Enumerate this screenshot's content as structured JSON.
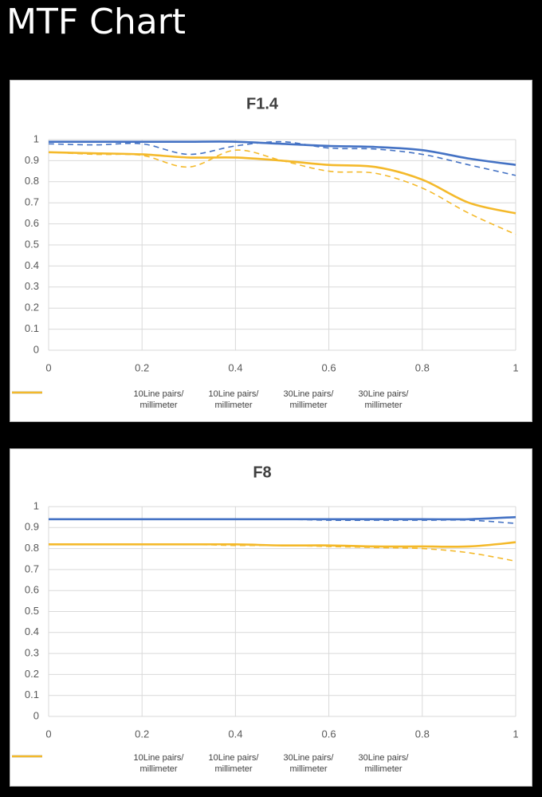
{
  "title": "MTF Chart",
  "chart_data": [
    {
      "type": "line",
      "title": "F1.4",
      "x": [
        0,
        0.1,
        0.2,
        0.3,
        0.4,
        0.5,
        0.6,
        0.7,
        0.8,
        0.9,
        1
      ],
      "xlim": [
        0,
        1
      ],
      "xticks": [
        0,
        0.2,
        0.4,
        0.6,
        0.8,
        1
      ],
      "ylim": [
        0,
        1
      ],
      "yticks": [
        0,
        0.1,
        0.2,
        0.3,
        0.4,
        0.5,
        0.6,
        0.7,
        0.8,
        0.9,
        1
      ],
      "grid": true,
      "legend": "bottom",
      "series": [
        {
          "name": "10Line pairs/ millimeter",
          "color": "#4472c4",
          "dashed": false,
          "values": [
            0.99,
            0.99,
            0.99,
            0.99,
            0.99,
            0.98,
            0.97,
            0.965,
            0.95,
            0.91,
            0.88
          ]
        },
        {
          "name": "10Line pairs/ millimeter",
          "color": "#4472c4",
          "dashed": true,
          "values": [
            0.98,
            0.975,
            0.98,
            0.93,
            0.97,
            0.99,
            0.96,
            0.955,
            0.93,
            0.88,
            0.83
          ]
        },
        {
          "name": "30Line pairs/ millimeter",
          "color": "#f4b92a",
          "dashed": false,
          "values": [
            0.94,
            0.935,
            0.93,
            0.915,
            0.915,
            0.9,
            0.88,
            0.87,
            0.81,
            0.7,
            0.65
          ]
        },
        {
          "name": "30Line pairs/ millimeter",
          "color": "#f4b92a",
          "dashed": true,
          "values": [
            0.94,
            0.93,
            0.925,
            0.87,
            0.95,
            0.9,
            0.85,
            0.84,
            0.77,
            0.65,
            0.55
          ]
        }
      ]
    },
    {
      "type": "line",
      "title": "F8",
      "x": [
        0,
        0.1,
        0.2,
        0.3,
        0.4,
        0.5,
        0.6,
        0.7,
        0.8,
        0.9,
        1
      ],
      "xlim": [
        0,
        1
      ],
      "xticks": [
        0,
        0.2,
        0.4,
        0.6,
        0.8,
        1
      ],
      "ylim": [
        0,
        1
      ],
      "yticks": [
        0,
        0.1,
        0.2,
        0.3,
        0.4,
        0.5,
        0.6,
        0.7,
        0.8,
        0.9,
        1
      ],
      "grid": true,
      "legend": "bottom",
      "series": [
        {
          "name": "10Line pairs/ millimeter",
          "color": "#4472c4",
          "dashed": false,
          "values": [
            0.94,
            0.94,
            0.94,
            0.94,
            0.94,
            0.94,
            0.94,
            0.94,
            0.94,
            0.94,
            0.95
          ]
        },
        {
          "name": "10Line pairs/ millimeter",
          "color": "#4472c4",
          "dashed": true,
          "values": [
            0.94,
            0.94,
            0.94,
            0.94,
            0.94,
            0.94,
            0.935,
            0.935,
            0.935,
            0.935,
            0.92
          ]
        },
        {
          "name": "30Line pairs/ millimeter",
          "color": "#f4b92a",
          "dashed": false,
          "values": [
            0.82,
            0.82,
            0.82,
            0.82,
            0.82,
            0.815,
            0.815,
            0.81,
            0.81,
            0.81,
            0.83
          ]
        },
        {
          "name": "30Line pairs/ millimeter",
          "color": "#f4b92a",
          "dashed": true,
          "values": [
            0.82,
            0.82,
            0.82,
            0.82,
            0.815,
            0.815,
            0.81,
            0.805,
            0.8,
            0.78,
            0.74
          ]
        }
      ]
    }
  ]
}
